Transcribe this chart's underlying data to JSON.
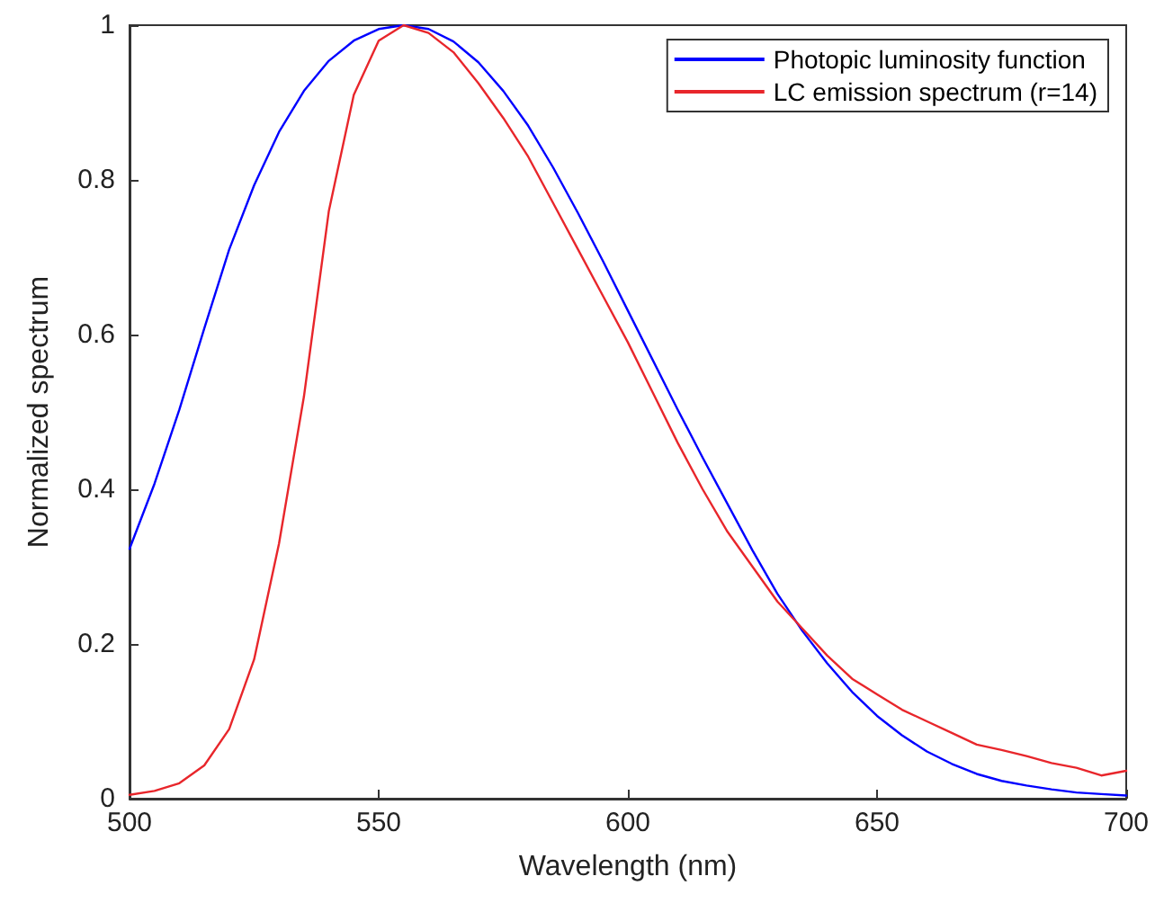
{
  "chart_data": {
    "type": "line",
    "xlabel": "Wavelength (nm)",
    "ylabel": "Normalized spectrum",
    "x": [
      500,
      505,
      510,
      515,
      520,
      525,
      530,
      535,
      540,
      545,
      550,
      555,
      560,
      565,
      570,
      575,
      580,
      585,
      590,
      595,
      600,
      605,
      610,
      615,
      620,
      625,
      630,
      635,
      640,
      645,
      650,
      655,
      660,
      665,
      670,
      675,
      680,
      685,
      690,
      695,
      700
    ],
    "series": [
      {
        "name": "Photopic luminosity function",
        "color": "#0000ff",
        "values": [
          0.323,
          0.407,
          0.503,
          0.608,
          0.71,
          0.793,
          0.862,
          0.915,
          0.954,
          0.98,
          0.995,
          1.0,
          0.995,
          0.979,
          0.952,
          0.915,
          0.87,
          0.816,
          0.757,
          0.695,
          0.631,
          0.567,
          0.503,
          0.441,
          0.381,
          0.321,
          0.265,
          0.217,
          0.175,
          0.138,
          0.107,
          0.082,
          0.061,
          0.045,
          0.032,
          0.023,
          0.017,
          0.012,
          0.008,
          0.006,
          0.004
        ]
      },
      {
        "name": "LC emission spectrum (r=14)",
        "color": "#e8262b",
        "values": [
          0.005,
          0.01,
          0.02,
          0.043,
          0.09,
          0.18,
          0.33,
          0.52,
          0.76,
          0.91,
          0.98,
          1.0,
          0.99,
          0.965,
          0.925,
          0.88,
          0.83,
          0.77,
          0.71,
          0.65,
          0.59,
          0.525,
          0.46,
          0.4,
          0.345,
          0.3,
          0.255,
          0.22,
          0.185,
          0.155,
          0.135,
          0.115,
          0.1,
          0.085,
          0.07,
          0.063,
          0.055,
          0.046,
          0.04,
          0.03,
          0.036
        ]
      }
    ],
    "xlim": [
      500,
      700
    ],
    "xticks": [
      500,
      550,
      600,
      650,
      700
    ],
    "ylim": [
      0,
      1
    ],
    "yticks": [
      0,
      0.2,
      0.4,
      0.6,
      0.8,
      1
    ],
    "grid": false,
    "legend": "top right",
    "marker": "none",
    "line_style": "solid"
  }
}
